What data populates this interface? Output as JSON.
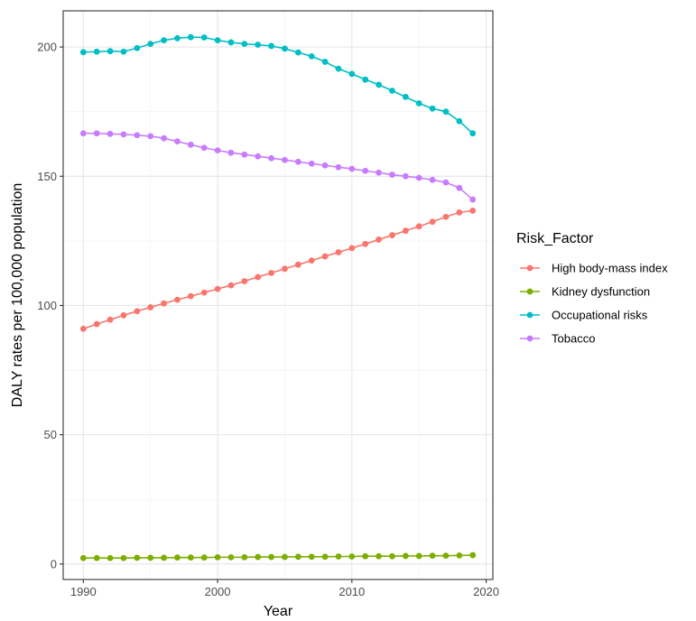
{
  "chart_data": {
    "type": "line",
    "xlabel": "Year",
    "ylabel": "DALY rates per 100,000 population",
    "xlim": [
      1988.5,
      2020.5
    ],
    "ylim": [
      -6,
      214
    ],
    "x_ticks": [
      1990,
      2000,
      2010,
      2020
    ],
    "y_ticks": [
      0,
      50,
      100,
      150,
      200
    ],
    "grid": true,
    "legend_title": "Risk_Factor",
    "legend_position": "right",
    "x": [
      1990,
      1991,
      1992,
      1993,
      1994,
      1995,
      1996,
      1997,
      1998,
      1999,
      2000,
      2001,
      2002,
      2003,
      2004,
      2005,
      2006,
      2007,
      2008,
      2009,
      2010,
      2011,
      2012,
      2013,
      2014,
      2015,
      2016,
      2017,
      2018,
      2019
    ],
    "series": [
      {
        "name": "High body-mass index",
        "color": "#F8766D",
        "values": [
          91.0,
          92.8,
          94.5,
          96.2,
          97.8,
          99.3,
          100.8,
          102.2,
          103.6,
          105.0,
          106.4,
          107.8,
          109.4,
          111.0,
          112.6,
          114.2,
          115.8,
          117.4,
          119.0,
          120.6,
          122.2,
          123.8,
          125.5,
          127.2,
          128.9,
          130.6,
          132.4,
          134.3,
          136.0,
          136.7
        ]
      },
      {
        "name": "Kidney dysfunction",
        "color": "#7CAE00",
        "values": [
          2.3,
          2.3,
          2.3,
          2.3,
          2.4,
          2.4,
          2.4,
          2.5,
          2.5,
          2.5,
          2.6,
          2.6,
          2.6,
          2.7,
          2.7,
          2.7,
          2.8,
          2.8,
          2.8,
          2.9,
          2.9,
          3.0,
          3.0,
          3.0,
          3.1,
          3.1,
          3.2,
          3.2,
          3.3,
          3.4
        ]
      },
      {
        "name": "Occupational risks",
        "color": "#00BFC4",
        "values": [
          198.0,
          198.2,
          198.4,
          198.2,
          199.6,
          201.2,
          202.6,
          203.4,
          203.8,
          203.7,
          202.6,
          201.8,
          201.2,
          200.9,
          200.4,
          199.4,
          197.9,
          196.4,
          194.3,
          191.6,
          189.6,
          187.4,
          185.4,
          183.1,
          180.7,
          178.2,
          176.2,
          175.0,
          171.3,
          166.6
        ]
      },
      {
        "name": "Tobacco",
        "color": "#C77CFF",
        "values": [
          166.6,
          166.6,
          166.4,
          166.2,
          165.9,
          165.5,
          164.7,
          163.5,
          162.2,
          161.0,
          160.0,
          159.1,
          158.4,
          157.7,
          157.0,
          156.3,
          155.6,
          154.9,
          154.2,
          153.5,
          152.9,
          152.1,
          151.4,
          150.6,
          150.0,
          149.4,
          148.6,
          147.6,
          145.5,
          141.0
        ]
      }
    ]
  }
}
